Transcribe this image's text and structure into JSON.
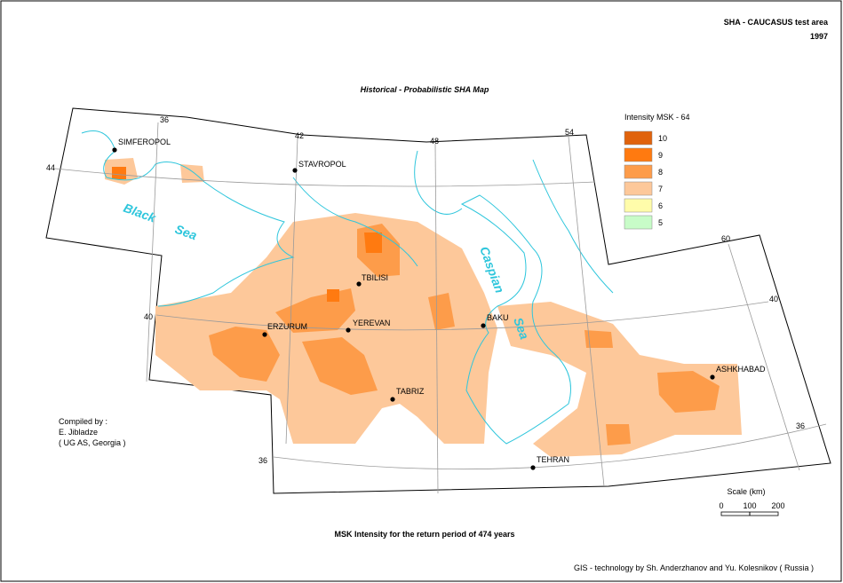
{
  "header": {
    "area": "SHA - CAUCASUS test area",
    "year": "1997"
  },
  "title": "Historical - Probabilistic SHA Map",
  "legend": {
    "title": "Intensity MSK - 64",
    "items": [
      {
        "label": 10,
        "color": "#e0620c"
      },
      {
        "label": 9,
        "color": "#ff7a10"
      },
      {
        "label": 8,
        "color": "#fd9c4a"
      },
      {
        "label": 7,
        "color": "#fdc89a"
      },
      {
        "label": 6,
        "color": "#fffcaa"
      },
      {
        "label": 5,
        "color": "#c8fcc8"
      }
    ]
  },
  "cities": [
    "SIMFEROPOL",
    "STAVROPOL",
    "TBILISI",
    "ERZURUM",
    "YEREVAN",
    "BAKU",
    "TABRIZ",
    "ASHKHABAD",
    "TEHRAN"
  ],
  "water_labels": [
    "Black",
    "Sea",
    "Caspian",
    "Sea"
  ],
  "longitude_labels": [
    36,
    42,
    48,
    54,
    60
  ],
  "latitude_labels": [
    44,
    40,
    40,
    36,
    36
  ],
  "credits": {
    "compiled_by": "Compiled by :",
    "author": "E. Jibladze",
    "affiliation": "( UG AS, Georgia )"
  },
  "scale": {
    "title": "Scale (km)",
    "ticks": [
      0,
      100,
      200
    ]
  },
  "subtitle": "MSK Intensity for the return period of 474 years",
  "footer": "GIS - technology by Sh. Anderzhanov and Yu. Kolesnikov ( Russia )"
}
